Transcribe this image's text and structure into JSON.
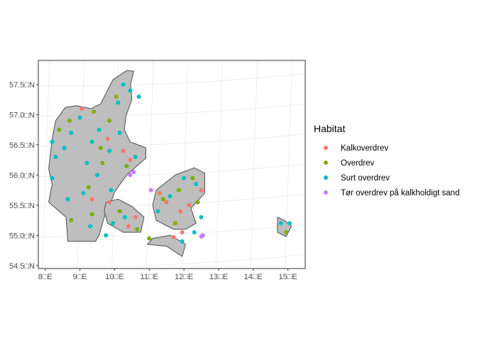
{
  "chart_data": {
    "type": "scatter",
    "subtype": "map",
    "xlim": [
      7.8,
      15.5
    ],
    "ylim": [
      54.45,
      57.9
    ],
    "x_ticks": [
      8,
      9,
      10,
      11,
      12,
      13,
      14,
      15
    ],
    "y_ticks": [
      54.5,
      55.0,
      55.5,
      56.0,
      56.5,
      57.0,
      57.5
    ],
    "x_tick_labels": [
      "8□E",
      "9□E",
      "10□E",
      "11□E",
      "12□E",
      "13□E",
      "14□E",
      "15□E"
    ],
    "y_tick_labels": [
      "54.5□N",
      "55.0□N",
      "55.5□N",
      "56.0□N",
      "56.5□N",
      "57.0□N",
      "57.5□N"
    ],
    "grid": true,
    "land_color": "#bebebe",
    "coast_color": "#4d4d4d",
    "legend": {
      "title": "Habitat",
      "placement": "right",
      "entries": [
        {
          "name": "Kalkoverdrev",
          "color": "#F8766D"
        },
        {
          "name": "Overdrev",
          "color": "#7CAE00"
        },
        {
          "name": "Surt overdrev",
          "color": "#00BFC4"
        },
        {
          "name": "Tør overdrev på kalkholdigt sand",
          "color": "#C77CFF"
        }
      ]
    },
    "landmasses": [
      {
        "name": "jutland",
        "lonlat": [
          [
            8.58,
            57.12
          ],
          [
            8.9,
            57.15
          ],
          [
            9.32,
            57.1
          ],
          [
            9.6,
            57.18
          ],
          [
            9.95,
            57.58
          ],
          [
            10.35,
            57.73
          ],
          [
            10.55,
            57.72
          ],
          [
            10.46,
            57.5
          ],
          [
            10.5,
            57.25
          ],
          [
            10.33,
            56.98
          ],
          [
            10.28,
            56.75
          ],
          [
            10.45,
            56.55
          ],
          [
            10.9,
            56.45
          ],
          [
            10.9,
            56.28
          ],
          [
            10.35,
            56.0
          ],
          [
            10.0,
            55.72
          ],
          [
            9.9,
            55.55
          ],
          [
            9.7,
            55.3
          ],
          [
            9.55,
            55.0
          ],
          [
            9.45,
            54.9
          ],
          [
            8.95,
            54.9
          ],
          [
            8.65,
            54.9
          ],
          [
            8.6,
            55.3
          ],
          [
            8.1,
            55.55
          ],
          [
            8.2,
            55.85
          ],
          [
            8.1,
            56.1
          ],
          [
            8.2,
            56.6
          ],
          [
            8.3,
            56.9
          ]
        ]
      },
      {
        "name": "funen",
        "lonlat": [
          [
            9.75,
            55.55
          ],
          [
            10.1,
            55.6
          ],
          [
            10.5,
            55.48
          ],
          [
            10.85,
            55.3
          ],
          [
            10.75,
            55.05
          ],
          [
            10.25,
            55.05
          ],
          [
            9.8,
            55.2
          ],
          [
            9.7,
            55.4
          ]
        ]
      },
      {
        "name": "zealand",
        "lonlat": [
          [
            11.2,
            55.75
          ],
          [
            11.75,
            56.0
          ],
          [
            12.3,
            56.12
          ],
          [
            12.6,
            56.03
          ],
          [
            12.6,
            55.7
          ],
          [
            12.2,
            55.45
          ],
          [
            12.35,
            55.2
          ],
          [
            12.05,
            55.1
          ],
          [
            11.7,
            55.1
          ],
          [
            11.2,
            55.25
          ],
          [
            11.1,
            55.5
          ]
        ]
      },
      {
        "name": "lolland-falster",
        "lonlat": [
          [
            10.95,
            54.85
          ],
          [
            11.5,
            54.82
          ],
          [
            11.95,
            54.65
          ],
          [
            12.05,
            54.85
          ],
          [
            11.6,
            55.0
          ],
          [
            11.1,
            54.95
          ]
        ]
      },
      {
        "name": "bornholm",
        "lonlat": [
          [
            14.7,
            55.3
          ],
          [
            14.9,
            55.25
          ],
          [
            15.1,
            55.15
          ],
          [
            14.95,
            54.98
          ],
          [
            14.7,
            55.05
          ]
        ]
      }
    ],
    "series": [
      {
        "name": "Kalkoverdrev",
        "color": "#F8766D",
        "points": [
          [
            9.05,
            57.1
          ],
          [
            9.8,
            56.6
          ],
          [
            10.25,
            56.4
          ],
          [
            10.45,
            56.25
          ],
          [
            11.3,
            55.7
          ],
          [
            11.5,
            55.55
          ],
          [
            11.9,
            55.4
          ],
          [
            12.15,
            55.5
          ],
          [
            12.5,
            55.75
          ],
          [
            11.95,
            55.05
          ],
          [
            11.7,
            54.97
          ],
          [
            10.6,
            55.3
          ],
          [
            9.85,
            55.55
          ],
          [
            9.35,
            55.6
          ],
          [
            10.4,
            55.15
          ]
        ]
      },
      {
        "name": "Overdrev",
        "color": "#7CAE00",
        "points": [
          [
            8.4,
            56.75
          ],
          [
            8.7,
            56.9
          ],
          [
            9.4,
            57.05
          ],
          [
            9.85,
            56.9
          ],
          [
            10.05,
            57.3
          ],
          [
            9.65,
            56.2
          ],
          [
            9.25,
            55.8
          ],
          [
            8.75,
            55.25
          ],
          [
            9.35,
            55.35
          ],
          [
            10.15,
            55.4
          ],
          [
            10.65,
            55.1
          ],
          [
            11.0,
            54.95
          ],
          [
            11.4,
            55.6
          ],
          [
            11.85,
            55.75
          ],
          [
            12.25,
            55.95
          ],
          [
            12.4,
            55.55
          ],
          [
            11.75,
            55.2
          ],
          [
            14.95,
            55.05
          ],
          [
            10.35,
            56.15
          ],
          [
            9.6,
            56.45
          ]
        ]
      },
      {
        "name": "Surt overdrev",
        "color": "#00BFC4",
        "points": [
          [
            8.2,
            56.55
          ],
          [
            8.3,
            56.3
          ],
          [
            8.2,
            55.95
          ],
          [
            8.55,
            56.45
          ],
          [
            8.75,
            56.7
          ],
          [
            9.0,
            56.95
          ],
          [
            9.35,
            56.55
          ],
          [
            9.55,
            56.75
          ],
          [
            9.85,
            56.4
          ],
          [
            10.15,
            56.7
          ],
          [
            10.25,
            57.5
          ],
          [
            10.1,
            57.2
          ],
          [
            10.45,
            57.4
          ],
          [
            10.7,
            57.3
          ],
          [
            9.2,
            56.2
          ],
          [
            9.5,
            56.0
          ],
          [
            9.1,
            55.7
          ],
          [
            8.65,
            55.6
          ],
          [
            9.3,
            55.15
          ],
          [
            9.75,
            55.0
          ],
          [
            9.9,
            55.75
          ],
          [
            10.6,
            56.3
          ],
          [
            11.25,
            55.4
          ],
          [
            11.6,
            55.65
          ],
          [
            12.0,
            55.95
          ],
          [
            12.35,
            55.85
          ],
          [
            12.5,
            55.3
          ],
          [
            12.3,
            55.05
          ],
          [
            11.95,
            54.9
          ],
          [
            10.3,
            55.3
          ],
          [
            9.95,
            55.2
          ],
          [
            14.8,
            55.2
          ],
          [
            15.05,
            55.2
          ]
        ]
      },
      {
        "name": "Tør overdrev på kalkholdigt sand",
        "color": "#C77CFF",
        "points": [
          [
            10.45,
            56.0
          ],
          [
            10.55,
            56.05
          ],
          [
            11.05,
            55.75
          ],
          [
            12.55,
            55.0
          ],
          [
            12.5,
            54.98
          ]
        ]
      }
    ]
  }
}
